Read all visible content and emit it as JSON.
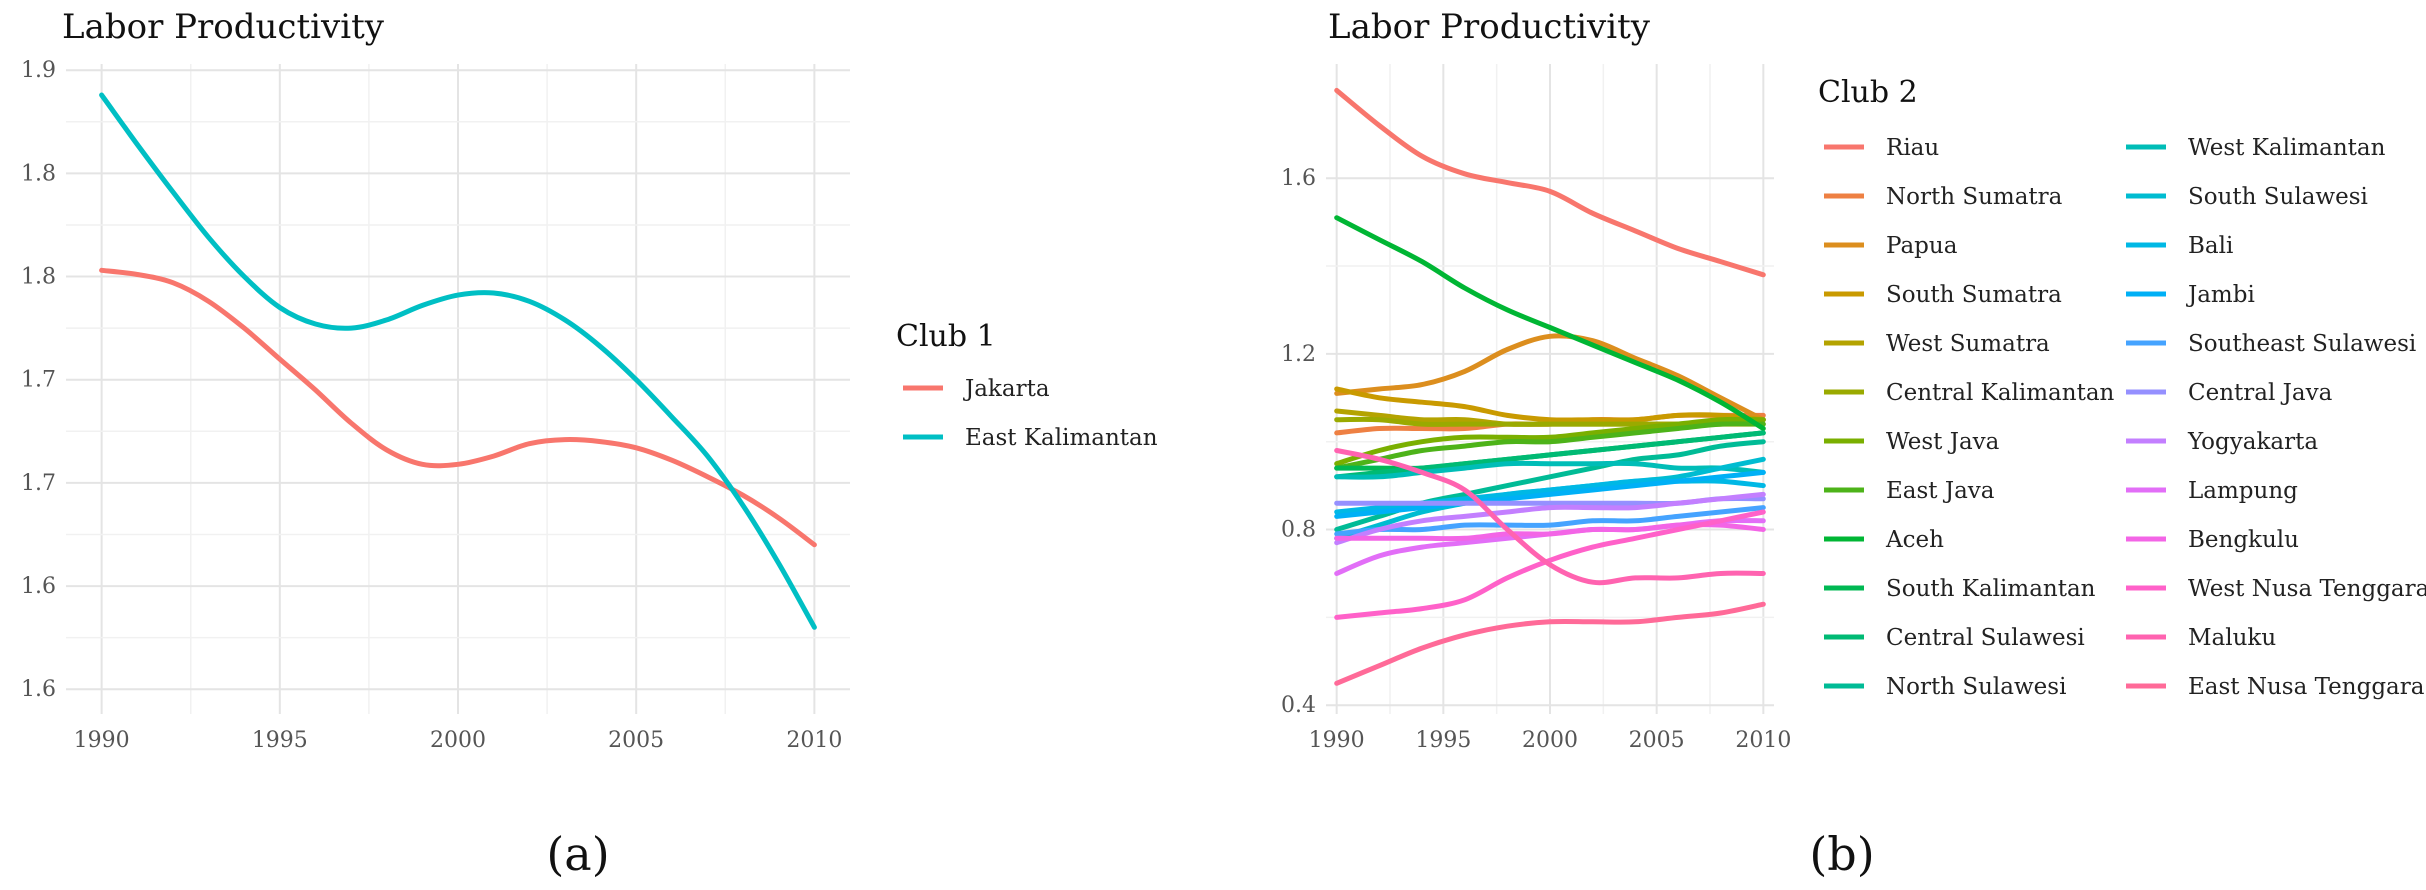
{
  "chart_data": [
    {
      "type": "line",
      "panel_label": "(a)",
      "title": "Labor Productivity",
      "xlabel": "",
      "ylabel": "",
      "x_ticks": [
        "1990",
        "1995",
        "2000",
        "2005",
        "2010"
      ],
      "xlim": [
        1989,
        2011
      ],
      "y_tick_labels": [
        "1.6",
        "1.6",
        "1.7",
        "1.7",
        "1.8",
        "1.8",
        "1.9"
      ],
      "y_tick_positions": [
        1.6,
        1.65,
        1.7,
        1.75,
        1.8,
        1.85,
        1.9
      ],
      "ylim": [
        1.588,
        1.903
      ],
      "grid": true,
      "legend_position": "right",
      "legend_title": "Club 1",
      "x": [
        1990,
        1991,
        1992,
        1993,
        1994,
        1995,
        1996,
        1997,
        1998,
        1999,
        2000,
        2001,
        2002,
        2003,
        2004,
        2005,
        2006,
        2007,
        2008,
        2009,
        2010
      ],
      "series": [
        {
          "name": "Jakarta",
          "color": "#F8766D",
          "values": [
            1.803,
            1.801,
            1.797,
            1.788,
            1.775,
            1.76,
            1.745,
            1.729,
            1.716,
            1.709,
            1.709,
            1.713,
            1.719,
            1.721,
            1.72,
            1.717,
            1.711,
            1.703,
            1.694,
            1.683,
            1.67
          ]
        },
        {
          "name": "East Kalimantan",
          "color": "#00BFC4",
          "values": [
            1.888,
            1.864,
            1.841,
            1.819,
            1.8,
            1.785,
            1.777,
            1.775,
            1.779,
            1.786,
            1.791,
            1.792,
            1.788,
            1.779,
            1.766,
            1.75,
            1.732,
            1.713,
            1.689,
            1.661,
            1.63
          ]
        }
      ]
    },
    {
      "type": "line",
      "panel_label": "(b)",
      "title": "Labor Productivity",
      "xlabel": "",
      "ylabel": "",
      "x_ticks": [
        "1990",
        "1995",
        "2000",
        "2005",
        "2010"
      ],
      "xlim": [
        1989.5,
        2010.5
      ],
      "y_ticks": [
        "0.4",
        "0.8",
        "1.2",
        "1.6"
      ],
      "ylim": [
        0.38,
        1.86
      ],
      "grid": true,
      "legend_position": "right",
      "legend_title": "Club 2",
      "x": [
        1990,
        1992,
        1994,
        1996,
        1998,
        2000,
        2002,
        2004,
        2006,
        2008,
        2010
      ],
      "series": [
        {
          "name": "Riau",
          "color": "#F8766D",
          "values": [
            1.8,
            1.72,
            1.65,
            1.61,
            1.59,
            1.57,
            1.52,
            1.48,
            1.44,
            1.41,
            1.38
          ]
        },
        {
          "name": "North Sumatra",
          "color": "#EE8043",
          "values": [
            1.02,
            1.03,
            1.03,
            1.03,
            1.04,
            1.04,
            1.05,
            1.05,
            1.06,
            1.06,
            1.06
          ]
        },
        {
          "name": "Papua",
          "color": "#DC8E1E",
          "values": [
            1.11,
            1.12,
            1.13,
            1.16,
            1.21,
            1.24,
            1.23,
            1.19,
            1.15,
            1.1,
            1.05
          ]
        },
        {
          "name": "South Sumatra",
          "color": "#C99A00",
          "values": [
            1.12,
            1.1,
            1.09,
            1.08,
            1.06,
            1.05,
            1.05,
            1.05,
            1.06,
            1.06,
            1.05
          ]
        },
        {
          "name": "West Sumatra",
          "color": "#B4A300",
          "values": [
            1.07,
            1.06,
            1.05,
            1.05,
            1.04,
            1.04,
            1.04,
            1.04,
            1.04,
            1.04,
            1.04
          ]
        },
        {
          "name": "Central Kalimantan",
          "color": "#9AAA00",
          "values": [
            1.05,
            1.05,
            1.04,
            1.04,
            1.04,
            1.04,
            1.04,
            1.04,
            1.04,
            1.04,
            1.05
          ]
        },
        {
          "name": "West Java",
          "color": "#7AAF00",
          "values": [
            0.95,
            0.98,
            1.0,
            1.01,
            1.01,
            1.01,
            1.02,
            1.03,
            1.04,
            1.05,
            1.05
          ]
        },
        {
          "name": "East Java",
          "color": "#4DB319",
          "values": [
            0.94,
            0.96,
            0.98,
            0.99,
            1.0,
            1.0,
            1.01,
            1.02,
            1.03,
            1.04,
            1.04
          ]
        },
        {
          "name": "Aceh",
          "color": "#00B634",
          "values": [
            1.51,
            1.46,
            1.41,
            1.35,
            1.3,
            1.26,
            1.22,
            1.18,
            1.14,
            1.09,
            1.03
          ]
        },
        {
          "name": "South Kalimantan",
          "color": "#00B853",
          "values": [
            0.94,
            0.94,
            0.94,
            0.95,
            0.96,
            0.97,
            0.98,
            0.99,
            1.0,
            1.01,
            1.02
          ]
        },
        {
          "name": "Central Sulawesi",
          "color": "#00BA74",
          "values": [
            0.92,
            0.93,
            0.94,
            0.95,
            0.96,
            0.97,
            0.98,
            0.99,
            1.0,
            1.01,
            1.02
          ]
        },
        {
          "name": "North Sulawesi",
          "color": "#00BB96",
          "values": [
            0.8,
            0.83,
            0.86,
            0.88,
            0.9,
            0.92,
            0.94,
            0.96,
            0.97,
            0.99,
            1.0
          ]
        },
        {
          "name": "West Kalimantan",
          "color": "#00BDB7",
          "values": [
            0.92,
            0.92,
            0.93,
            0.94,
            0.95,
            0.95,
            0.95,
            0.95,
            0.94,
            0.94,
            0.93
          ]
        },
        {
          "name": "South Sulawesi",
          "color": "#00BCD1",
          "values": [
            0.78,
            0.81,
            0.84,
            0.86,
            0.88,
            0.89,
            0.9,
            0.91,
            0.92,
            0.94,
            0.96
          ]
        },
        {
          "name": "Bali",
          "color": "#00B8E5",
          "values": [
            0.84,
            0.85,
            0.86,
            0.87,
            0.88,
            0.89,
            0.9,
            0.91,
            0.91,
            0.91,
            0.9
          ]
        },
        {
          "name": "Jambi",
          "color": "#00B0F6",
          "values": [
            0.83,
            0.84,
            0.85,
            0.86,
            0.87,
            0.88,
            0.89,
            0.9,
            0.91,
            0.92,
            0.93
          ]
        },
        {
          "name": "Southeast Sulawesi",
          "color": "#45A3FF",
          "values": [
            0.79,
            0.8,
            0.8,
            0.81,
            0.81,
            0.81,
            0.82,
            0.82,
            0.83,
            0.84,
            0.85
          ]
        },
        {
          "name": "Central Java",
          "color": "#9590FF",
          "values": [
            0.86,
            0.86,
            0.86,
            0.86,
            0.86,
            0.86,
            0.86,
            0.86,
            0.86,
            0.87,
            0.87
          ]
        },
        {
          "name": "Yogyakarta",
          "color": "#C37FFF",
          "values": [
            0.77,
            0.8,
            0.82,
            0.83,
            0.84,
            0.85,
            0.85,
            0.85,
            0.86,
            0.87,
            0.88
          ]
        },
        {
          "name": "Lampung",
          "color": "#E26EF7",
          "values": [
            0.7,
            0.74,
            0.76,
            0.77,
            0.78,
            0.79,
            0.8,
            0.8,
            0.81,
            0.82,
            0.82
          ]
        },
        {
          "name": "Bengkulu",
          "color": "#F365E6",
          "values": [
            0.78,
            0.78,
            0.78,
            0.78,
            0.79,
            0.79,
            0.8,
            0.8,
            0.81,
            0.81,
            0.8
          ]
        },
        {
          "name": "West Nusa Tenggara",
          "color": "#FF61C9",
          "values": [
            0.6,
            0.61,
            0.62,
            0.64,
            0.69,
            0.73,
            0.76,
            0.78,
            0.8,
            0.82,
            0.84
          ]
        },
        {
          "name": "Maluku",
          "color": "#FF63B0",
          "values": [
            0.98,
            0.96,
            0.93,
            0.89,
            0.8,
            0.72,
            0.68,
            0.69,
            0.69,
            0.7,
            0.7
          ]
        },
        {
          "name": "East Nusa Tenggara",
          "color": "#FF6A98",
          "values": [
            0.45,
            0.49,
            0.53,
            0.56,
            0.58,
            0.59,
            0.59,
            0.59,
            0.6,
            0.61,
            0.63
          ]
        }
      ]
    }
  ]
}
